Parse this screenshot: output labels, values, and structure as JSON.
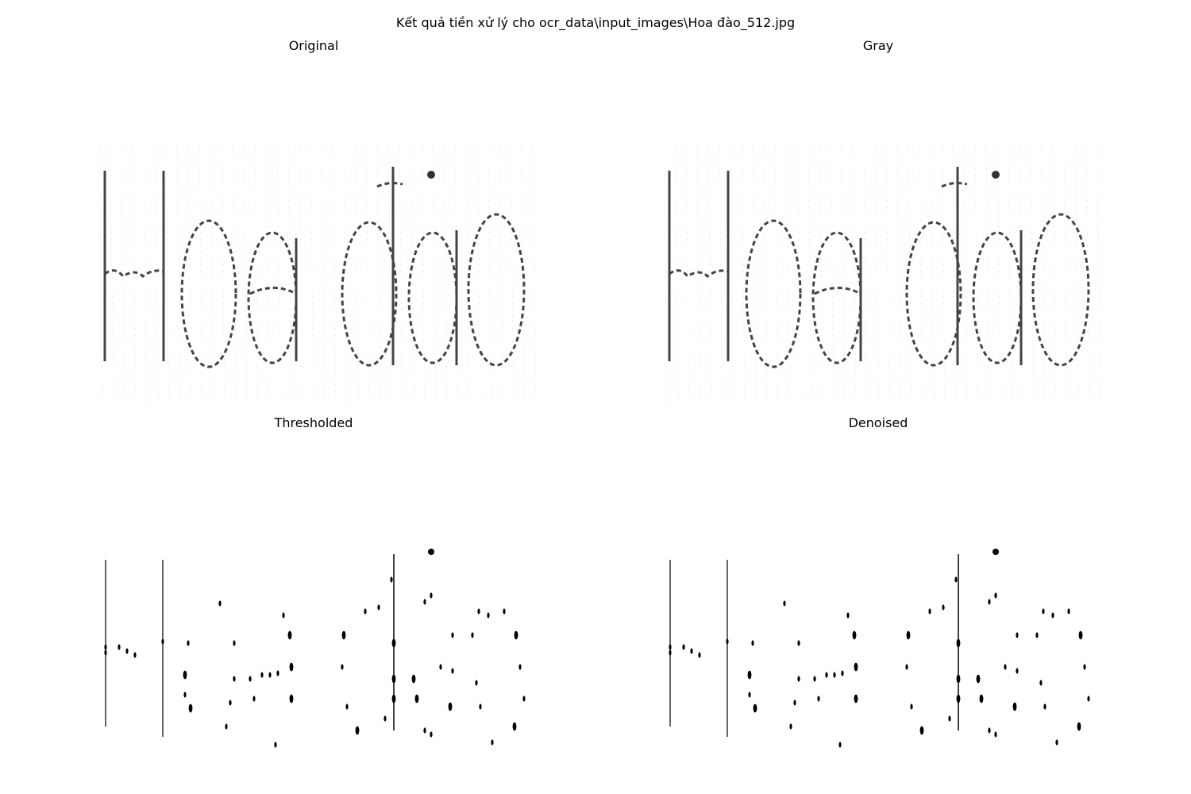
{
  "figure": {
    "suptitle": "Kết quả tiền xử lý cho ocr_data\\input_images\\Hoa đào_512.jpg",
    "panels": [
      {
        "title": "Original",
        "style": "soft"
      },
      {
        "title": "Gray",
        "style": "soft"
      },
      {
        "title": "Thresholded",
        "style": "binary"
      },
      {
        "title": "Denoised",
        "style": "binary"
      }
    ],
    "image_text": "Hoa đào"
  }
}
